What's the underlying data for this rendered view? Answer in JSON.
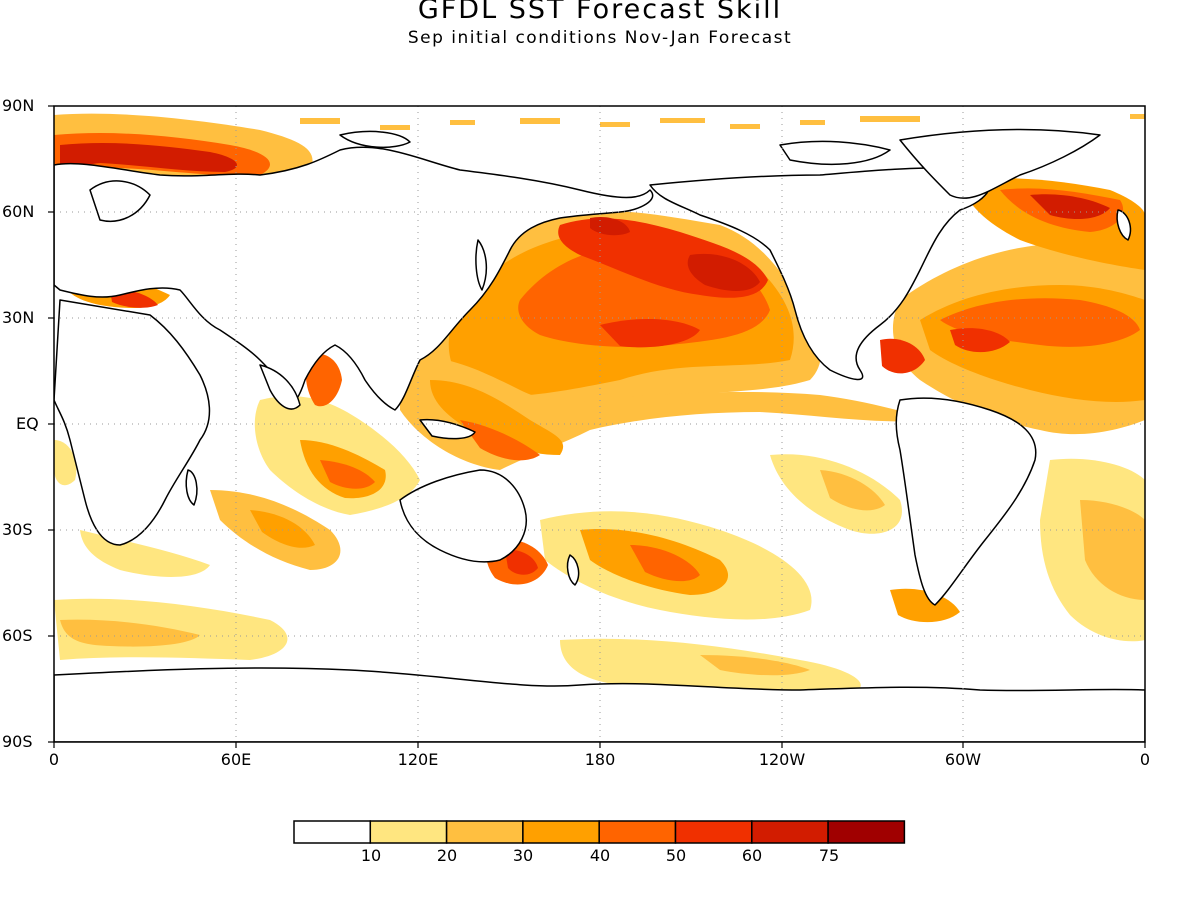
{
  "header": {
    "title": "GFDL SST Forecast Skill",
    "subtitle": "Sep initial conditions   Nov-Jan Forecast"
  },
  "axes": {
    "y_ticks": [
      "90N",
      "60N",
      "30N",
      "EQ",
      "30S",
      "60S",
      "90S"
    ],
    "x_ticks": [
      "0",
      "60E",
      "120E",
      "180",
      "120W",
      "60W",
      "0"
    ]
  },
  "legend": {
    "bins": [
      {
        "color": "#ffffff"
      },
      {
        "color": "#ffe680"
      },
      {
        "color": "#ffbf40"
      },
      {
        "color": "#ffa000"
      },
      {
        "color": "#ff6400"
      },
      {
        "color": "#f03000"
      },
      {
        "color": "#d21c00"
      },
      {
        "color": "#a00000"
      }
    ],
    "labels": [
      "10",
      "20",
      "30",
      "40",
      "50",
      "60",
      "75"
    ]
  }
}
